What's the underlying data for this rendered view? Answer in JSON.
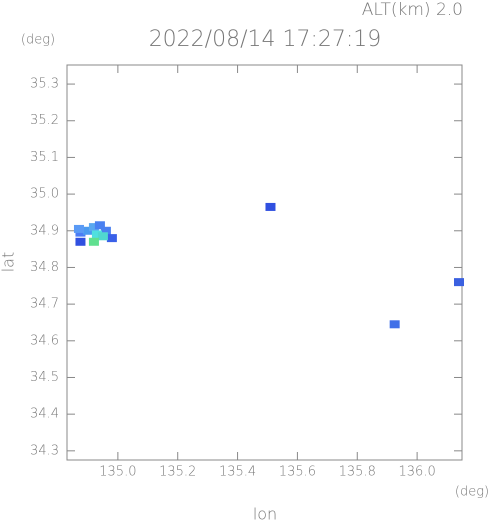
{
  "chart_data": {
    "type": "scatter",
    "title": "2022/08/14 17:27:19",
    "subtitle": "ALT(km) 2.0",
    "x_label": "lon",
    "y_label": "lat",
    "x_unit": "(deg)",
    "y_unit": "(deg)",
    "xlim": [
      134.83,
      136.15
    ],
    "ylim": [
      34.275,
      35.352
    ],
    "xticks": [
      {
        "value": 135.0,
        "label": "135.0"
      },
      135.2,
      135.4,
      135.6,
      135.8,
      {
        "value": 136.0,
        "label": "136.0"
      }
    ],
    "yticks": [
      {
        "value": 34.3,
        "label": "34.3"
      },
      34.4,
      34.5,
      34.6,
      34.7,
      34.8,
      {
        "value": 34.9,
        "label": "34.9"
      },
      {
        "value": 35.0,
        "label": "35.0"
      },
      35.1,
      35.2,
      35.3
    ],
    "x": [
      134.875,
      134.875,
      134.9,
      134.92,
      134.94,
      134.96,
      134.98,
      134.87,
      134.93,
      134.95,
      134.92,
      135.51,
      135.925,
      136.14
    ],
    "y": [
      34.895,
      34.87,
      34.9,
      34.91,
      34.915,
      34.9,
      34.88,
      34.905,
      34.89,
      34.885,
      34.87,
      34.965,
      34.645,
      34.76
    ],
    "colors": [
      "#4a7cf5",
      "#3050e0",
      "#4a9af0",
      "#5aa8f0",
      "#4a80f0",
      "#4a80f0",
      "#3a60e8",
      "#5a9af5",
      "#50e0e0",
      "#50d8d0",
      "#60e090",
      "#3050e0",
      "#4070e8",
      "#3a60e0"
    ]
  }
}
